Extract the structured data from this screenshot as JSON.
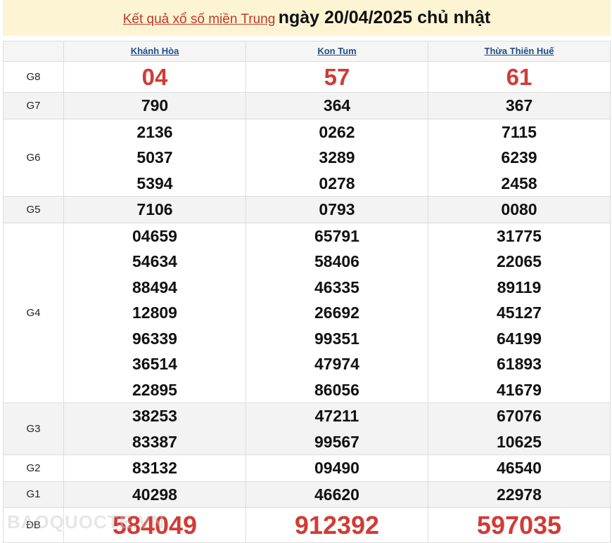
{
  "header": {
    "link": "Kết quả xổ số miền Trung",
    "date": "ngày 20/04/2025 chủ nhật"
  },
  "provinces": [
    "Khánh Hòa",
    "Kon Tum",
    "Thừa Thiên Huế"
  ],
  "prizes": [
    {
      "label": "G8",
      "style": "big",
      "values": [
        [
          "04"
        ],
        [
          "57"
        ],
        [
          "61"
        ]
      ]
    },
    {
      "label": "G7",
      "style": "n",
      "alt": true,
      "values": [
        [
          "790"
        ],
        [
          "364"
        ],
        [
          "367"
        ]
      ]
    },
    {
      "label": "G6",
      "style": "n",
      "values": [
        [
          "2136",
          "5037",
          "5394"
        ],
        [
          "0262",
          "3289",
          "0278"
        ],
        [
          "7115",
          "6239",
          "2458"
        ]
      ]
    },
    {
      "label": "G5",
      "style": "n",
      "alt": true,
      "values": [
        [
          "7106"
        ],
        [
          "0793"
        ],
        [
          "0080"
        ]
      ]
    },
    {
      "label": "G4",
      "style": "n",
      "values": [
        [
          "04659",
          "54634",
          "88494",
          "12809",
          "96339",
          "36514",
          "22895"
        ],
        [
          "65791",
          "58406",
          "46335",
          "26692",
          "99351",
          "47974",
          "86056"
        ],
        [
          "31775",
          "22065",
          "89119",
          "45127",
          "64199",
          "61893",
          "41679"
        ]
      ]
    },
    {
      "label": "G3",
      "style": "n",
      "alt": true,
      "values": [
        [
          "38253",
          "83387"
        ],
        [
          "47211",
          "99567"
        ],
        [
          "67076",
          "10625"
        ]
      ]
    },
    {
      "label": "G2",
      "style": "n",
      "values": [
        [
          "83132"
        ],
        [
          "09490"
        ],
        [
          "46540"
        ]
      ]
    },
    {
      "label": "G1",
      "style": "n",
      "alt": true,
      "values": [
        [
          "40298"
        ],
        [
          "46620"
        ],
        [
          "22978"
        ]
      ]
    },
    {
      "label": "ĐB",
      "style": "big db",
      "values": [
        [
          "584049"
        ],
        [
          "912392"
        ],
        [
          "597035"
        ]
      ]
    }
  ],
  "watermark": "BAOQUOCTE.VN"
}
